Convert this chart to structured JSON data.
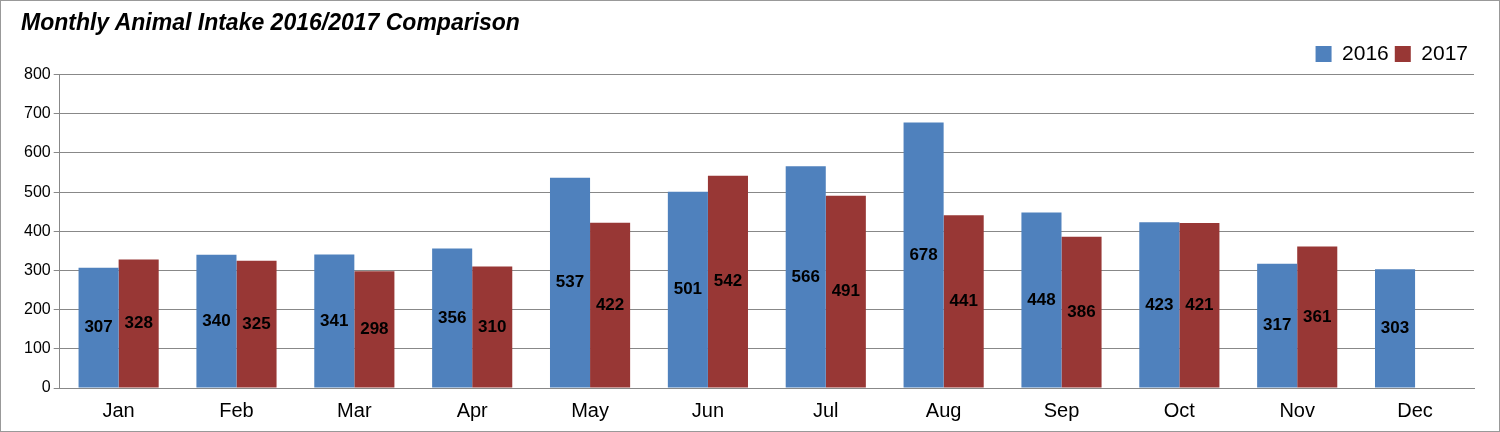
{
  "chart_data": {
    "type": "bar",
    "title": "Monthly Animal Intake 2016/2017 Comparison",
    "categories": [
      "Jan",
      "Feb",
      "Mar",
      "Apr",
      "May",
      "Jun",
      "Jul",
      "Aug",
      "Sep",
      "Oct",
      "Nov",
      "Dec"
    ],
    "series": [
      {
        "name": "2016",
        "color": "#4f81bd",
        "values": [
          307,
          340,
          341,
          356,
          537,
          501,
          566,
          678,
          448,
          423,
          317,
          303
        ]
      },
      {
        "name": "2017",
        "color": "#983735",
        "values": [
          328,
          325,
          298,
          310,
          422,
          542,
          491,
          441,
          386,
          421,
          361,
          null
        ]
      }
    ],
    "ylim": [
      0,
      800
    ],
    "yticks": [
      0,
      100,
      200,
      300,
      400,
      500,
      600,
      700,
      800
    ],
    "grid": "y",
    "legend": "top right",
    "data_labels": true
  }
}
